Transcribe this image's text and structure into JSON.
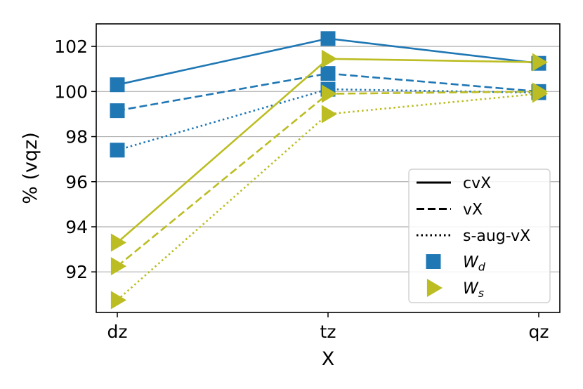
{
  "chart_data": {
    "type": "line",
    "title": "",
    "xlabel": "X",
    "ylabel": "% (vqz)",
    "categories": [
      "dz",
      "tz",
      "qz"
    ],
    "ylim": [
      90.2,
      103.0
    ],
    "yticks": [
      92,
      94,
      96,
      98,
      100,
      102
    ],
    "ytick_labels": [
      "92",
      "94",
      "96",
      "98",
      "100",
      "102"
    ],
    "grid": "y",
    "legend_position": "lower-right",
    "legend": [
      {
        "label": "cvX",
        "kind": "line",
        "dash": "solid"
      },
      {
        "label": "vX",
        "kind": "line",
        "dash": "dashed"
      },
      {
        "label": "s-aug-vX",
        "kind": "line",
        "dash": "dotted"
      },
      {
        "label": "W",
        "sub": "d",
        "kind": "marker",
        "marker": "square",
        "color": "#1f77b4"
      },
      {
        "label": "W",
        "sub": "s",
        "kind": "marker",
        "marker": "triangle",
        "color": "#bcbd22"
      }
    ],
    "series": [
      {
        "name": "W_d cvX",
        "quantity": "W_d",
        "basis": "cvX",
        "dash": "solid",
        "marker": "square",
        "color": "#1f77b4",
        "values": [
          100.3,
          102.35,
          101.25
        ]
      },
      {
        "name": "W_d vX",
        "quantity": "W_d",
        "basis": "vX",
        "dash": "dashed",
        "marker": "square",
        "color": "#1f77b4",
        "values": [
          99.15,
          100.8,
          100.0
        ]
      },
      {
        "name": "W_d s-aug-vX",
        "quantity": "W_d",
        "basis": "s-aug-vX",
        "dash": "dotted",
        "marker": "square",
        "color": "#1f77b4",
        "values": [
          97.4,
          100.1,
          99.95
        ]
      },
      {
        "name": "W_s cvX",
        "quantity": "W_s",
        "basis": "cvX",
        "dash": "solid",
        "marker": "triangle",
        "color": "#bcbd22",
        "values": [
          93.3,
          101.45,
          101.3
        ]
      },
      {
        "name": "W_s vX",
        "quantity": "W_s",
        "basis": "vX",
        "dash": "dashed",
        "marker": "triangle",
        "color": "#bcbd22",
        "values": [
          92.25,
          99.9,
          100.0
        ]
      },
      {
        "name": "W_s s-aug-vX",
        "quantity": "W_s",
        "basis": "s-aug-vX",
        "dash": "dotted",
        "marker": "triangle",
        "color": "#bcbd22",
        "values": [
          90.75,
          99.0,
          99.9
        ]
      }
    ]
  }
}
